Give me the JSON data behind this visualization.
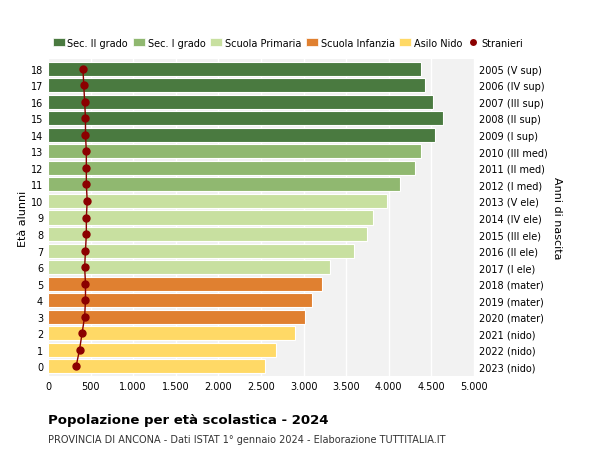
{
  "ages": [
    0,
    1,
    2,
    3,
    4,
    5,
    6,
    7,
    8,
    9,
    10,
    11,
    12,
    13,
    14,
    15,
    16,
    17,
    18
  ],
  "anni_nascita": [
    "2023 (nido)",
    "2022 (nido)",
    "2021 (nido)",
    "2020 (mater)",
    "2019 (mater)",
    "2018 (mater)",
    "2017 (I ele)",
    "2016 (II ele)",
    "2015 (III ele)",
    "2014 (IV ele)",
    "2013 (V ele)",
    "2012 (I med)",
    "2011 (II med)",
    "2010 (III med)",
    "2009 (I sup)",
    "2008 (II sup)",
    "2007 (III sup)",
    "2006 (IV sup)",
    "2005 (V sup)"
  ],
  "values": [
    2550,
    2680,
    2900,
    3020,
    3100,
    3220,
    3310,
    3590,
    3740,
    3810,
    3980,
    4130,
    4310,
    4380,
    4540,
    4640,
    4520,
    4420,
    4380
  ],
  "stranieri": [
    330,
    370,
    400,
    430,
    440,
    440,
    430,
    440,
    450,
    450,
    460,
    450,
    450,
    450,
    440,
    440,
    430,
    420,
    410
  ],
  "bar_colors": [
    "#FFD966",
    "#FFD966",
    "#FFD966",
    "#E08030",
    "#E08030",
    "#E08030",
    "#C8E0A0",
    "#C8E0A0",
    "#C8E0A0",
    "#C8E0A0",
    "#C8E0A0",
    "#90B870",
    "#90B870",
    "#90B870",
    "#4A7A40",
    "#4A7A40",
    "#4A7A40",
    "#4A7A40",
    "#4A7A40"
  ],
  "legend_labels": [
    "Sec. II grado",
    "Sec. I grado",
    "Scuola Primaria",
    "Scuola Infanzia",
    "Asilo Nido",
    "Stranieri"
  ],
  "legend_colors": [
    "#4A7A40",
    "#90B870",
    "#C8E0A0",
    "#E08030",
    "#FFD966",
    "#8B0000"
  ],
  "title": "Popolazione per età scolastica - 2024",
  "subtitle": "PROVINCIA DI ANCONA - Dati ISTAT 1° gennaio 2024 - Elaborazione TUTTITALIA.IT",
  "ylabel_left": "Età alunni",
  "ylabel_right": "Anni di nascita",
  "xlim": [
    0,
    5000
  ],
  "xticks": [
    0,
    500,
    1000,
    1500,
    2000,
    2500,
    3000,
    3500,
    4000,
    4500,
    5000
  ],
  "background_color": "#FFFFFF",
  "plot_bg_color": "#F2F2F2",
  "grid_color": "#FFFFFF",
  "bar_height": 0.85,
  "stranieri_color": "#8B0000",
  "stranieri_marker_size": 5
}
